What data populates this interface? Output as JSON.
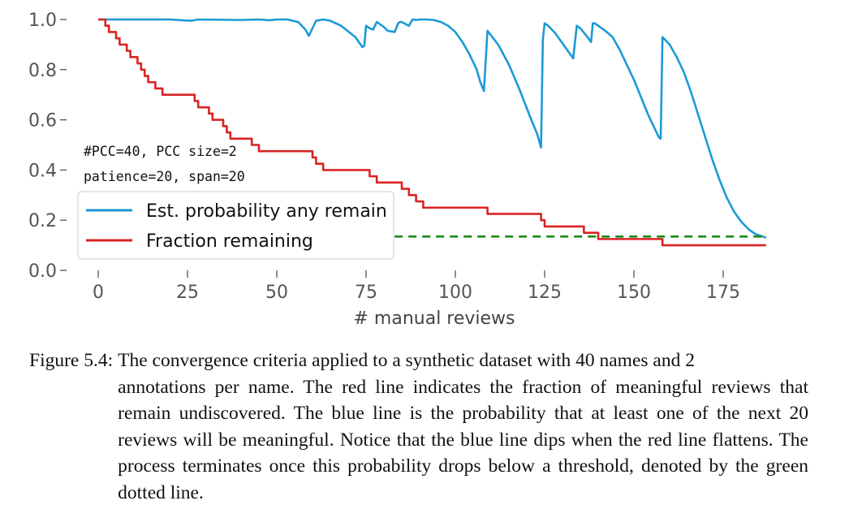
{
  "chart_data": {
    "type": "line",
    "xlabel": "# manual reviews",
    "ylabel": "",
    "xlim": [
      -5,
      189
    ],
    "ylim": [
      0,
      1.0
    ],
    "x_ticks": [
      0,
      25,
      50,
      75,
      100,
      125,
      150,
      175
    ],
    "y_ticks": [
      "0.0",
      "0.2",
      "0.4",
      "0.6",
      "0.8",
      "1.0"
    ],
    "grid": false,
    "legend_position": "lower-left",
    "annotations": [
      "#PCC=40, PCC size=2",
      "patience=20, span=20"
    ],
    "threshold": {
      "y": 0.135,
      "x_start": 83,
      "x_end": 187,
      "color": "#1a8a1a",
      "style": "dashed"
    },
    "series": [
      {
        "name": "Est. probability any remain",
        "color": "#1b9ad6",
        "x": [
          0,
          20,
          26,
          28,
          40,
          45,
          48,
          50,
          53,
          56,
          58,
          59,
          61,
          63,
          65,
          68,
          72,
          74,
          74.5,
          75,
          76,
          77,
          78,
          79,
          80,
          81,
          83,
          84,
          84.5,
          85,
          87,
          88,
          89,
          90,
          91,
          92,
          94,
          96,
          98,
          100,
          102,
          104,
          106,
          107,
          108,
          109,
          112,
          115,
          118,
          121,
          123,
          124,
          124.5,
          125,
          126,
          128,
          130,
          132,
          133,
          134,
          134.5,
          135,
          137,
          138,
          138.5,
          139,
          140,
          142,
          144,
          146,
          148,
          150,
          152,
          154,
          156,
          157,
          157.5,
          158,
          160,
          162,
          164,
          166,
          168,
          170,
          172,
          174,
          176,
          178,
          180,
          182,
          184,
          186,
          187
        ],
        "values": [
          1.0,
          1.0,
          0.995,
          1.0,
          0.998,
          1.0,
          0.997,
          1.0,
          1.0,
          0.99,
          0.96,
          0.935,
          0.995,
          1.0,
          0.995,
          0.975,
          0.93,
          0.89,
          0.895,
          0.975,
          0.965,
          0.96,
          0.99,
          0.98,
          0.97,
          0.955,
          0.95,
          0.985,
          0.99,
          0.99,
          0.975,
          1.0,
          0.998,
          1.0,
          1.0,
          1.0,
          0.998,
          0.99,
          0.975,
          0.95,
          0.91,
          0.86,
          0.8,
          0.75,
          0.715,
          0.955,
          0.9,
          0.82,
          0.72,
          0.61,
          0.54,
          0.49,
          0.92,
          0.985,
          0.975,
          0.945,
          0.905,
          0.865,
          0.845,
          0.975,
          0.97,
          0.965,
          0.93,
          0.91,
          0.985,
          0.985,
          0.975,
          0.955,
          0.93,
          0.88,
          0.82,
          0.76,
          0.69,
          0.62,
          0.56,
          0.53,
          0.525,
          0.93,
          0.9,
          0.85,
          0.79,
          0.71,
          0.62,
          0.53,
          0.44,
          0.36,
          0.29,
          0.235,
          0.195,
          0.165,
          0.145,
          0.135,
          0.13
        ]
      },
      {
        "name": "Fraction remaining",
        "color": "#d92323",
        "x": [
          0,
          2,
          3,
          4,
          5,
          6,
          7,
          8,
          9,
          10,
          11,
          12,
          13,
          14,
          15,
          16,
          17,
          18,
          19,
          20,
          21,
          22,
          23,
          24,
          25,
          26,
          27,
          28,
          29,
          30,
          31,
          32,
          33,
          34,
          35,
          36,
          37,
          38,
          39,
          40,
          41,
          42,
          43,
          44,
          45,
          46,
          47,
          48,
          49,
          50,
          52,
          55,
          58,
          60,
          61,
          63,
          65,
          70,
          75,
          76,
          77,
          78,
          80,
          82,
          84,
          85,
          86,
          87,
          88,
          89,
          90,
          91,
          92,
          95,
          100,
          105,
          108,
          109,
          110,
          115,
          120,
          123,
          124,
          125,
          127,
          130,
          133,
          135,
          136,
          138,
          139,
          140,
          141,
          145,
          150,
          155,
          157,
          158,
          160,
          165,
          170,
          175,
          180,
          185,
          187
        ],
        "values": [
          1.0,
          0.975,
          0.95,
          0.95,
          0.925,
          0.9,
          0.9,
          0.875,
          0.85,
          0.85,
          0.825,
          0.8,
          0.775,
          0.75,
          0.75,
          0.725,
          0.725,
          0.7,
          0.7,
          0.7,
          0.7,
          0.7,
          0.7,
          0.7,
          0.7,
          0.7,
          0.675,
          0.65,
          0.65,
          0.65,
          0.625,
          0.6,
          0.6,
          0.6,
          0.575,
          0.55,
          0.525,
          0.525,
          0.525,
          0.525,
          0.525,
          0.525,
          0.5,
          0.5,
          0.475,
          0.475,
          0.475,
          0.475,
          0.475,
          0.475,
          0.475,
          0.475,
          0.475,
          0.45,
          0.425,
          0.4,
          0.4,
          0.4,
          0.4,
          0.375,
          0.375,
          0.35,
          0.35,
          0.35,
          0.35,
          0.325,
          0.325,
          0.3,
          0.3,
          0.275,
          0.275,
          0.25,
          0.25,
          0.25,
          0.25,
          0.25,
          0.25,
          0.225,
          0.225,
          0.225,
          0.225,
          0.225,
          0.2,
          0.175,
          0.175,
          0.175,
          0.175,
          0.175,
          0.15,
          0.15,
          0.15,
          0.125,
          0.125,
          0.125,
          0.125,
          0.125,
          0.125,
          0.1,
          0.1,
          0.1,
          0.1,
          0.1,
          0.1,
          0.1,
          0.1
        ]
      }
    ]
  },
  "caption": {
    "label": "Figure 5.4:",
    "first_line": "The convergence criteria applied to a synthetic dataset with 40 names and 2",
    "rest": "annotations per name. The red line indicates the fraction of meaningful reviews that remain undiscovered. The blue line is the probability that at least one of the next 20 reviews will be meaningful. Notice that the blue line dips when the red line flattens. The process terminates once this probability drops below a threshold, denoted by the green dotted line."
  }
}
